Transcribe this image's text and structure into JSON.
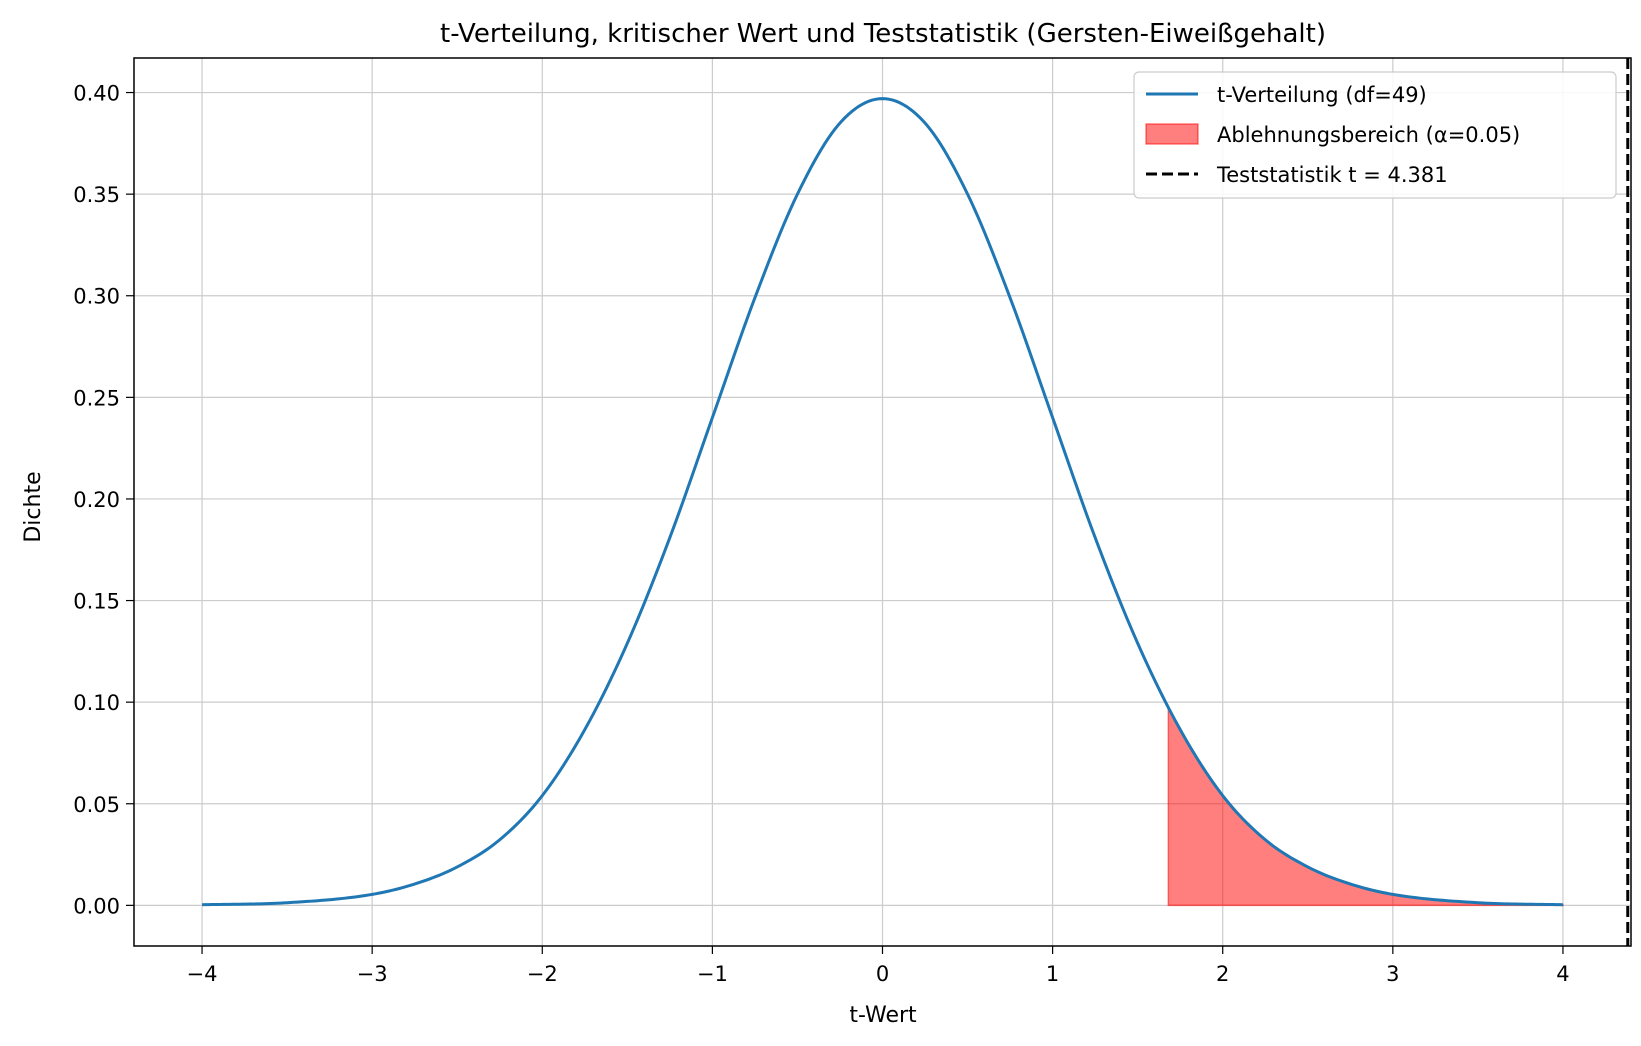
{
  "chart_data": {
    "type": "line",
    "title": "t-Verteilung, kritischer Wert und Teststatistik (Gersten-Eiweißgehalt)",
    "xlabel": "t-Wert",
    "ylabel": "Dichte",
    "xlim": [
      -4.4,
      4.4
    ],
    "ylim": [
      -0.02,
      0.417
    ],
    "grid": true,
    "legend_position": "top-right",
    "x_ticks": [
      -4,
      -3,
      -2,
      -1,
      0,
      1,
      2,
      3,
      4
    ],
    "x_tick_labels": [
      "−4",
      "−3",
      "−2",
      "−1",
      "0",
      "1",
      "2",
      "3",
      "4"
    ],
    "y_ticks": [
      0.0,
      0.05,
      0.1,
      0.15,
      0.2,
      0.25,
      0.3,
      0.35,
      0.4
    ],
    "y_tick_labels": [
      "0.00",
      "0.05",
      "0.10",
      "0.15",
      "0.20",
      "0.25",
      "0.30",
      "0.35",
      "0.40"
    ],
    "series": [
      {
        "name": "t-Verteilung (df=49)",
        "kind": "line",
        "color": "#1f77b4",
        "x": [
          -4.0,
          -3.5,
          -3.0,
          -2.75,
          -2.5,
          -2.25,
          -2.0,
          -1.75,
          -1.5,
          -1.25,
          -1.0,
          -0.75,
          -0.5,
          -0.25,
          0.0,
          0.25,
          0.5,
          0.75,
          1.0,
          1.25,
          1.5,
          1.75,
          2.0,
          2.25,
          2.5,
          2.75,
          3.0,
          3.5,
          4.0
        ],
        "y": [
          0.0003,
          0.0013,
          0.0054,
          0.0105,
          0.0189,
          0.0323,
          0.054,
          0.0865,
          0.129,
          0.181,
          0.24,
          0.299,
          0.35,
          0.385,
          0.397,
          0.385,
          0.35,
          0.299,
          0.24,
          0.181,
          0.129,
          0.0865,
          0.054,
          0.0323,
          0.0189,
          0.0105,
          0.0054,
          0.0013,
          0.0003
        ]
      },
      {
        "name": "Ablehnungsbereich (α=0.05)",
        "kind": "area",
        "color": "#ff0000",
        "x_from": 1.68,
        "x_to": 4.0
      },
      {
        "name": "Teststatistik t = 4.381",
        "kind": "vline",
        "color": "#000000",
        "x": 4.381
      }
    ]
  }
}
